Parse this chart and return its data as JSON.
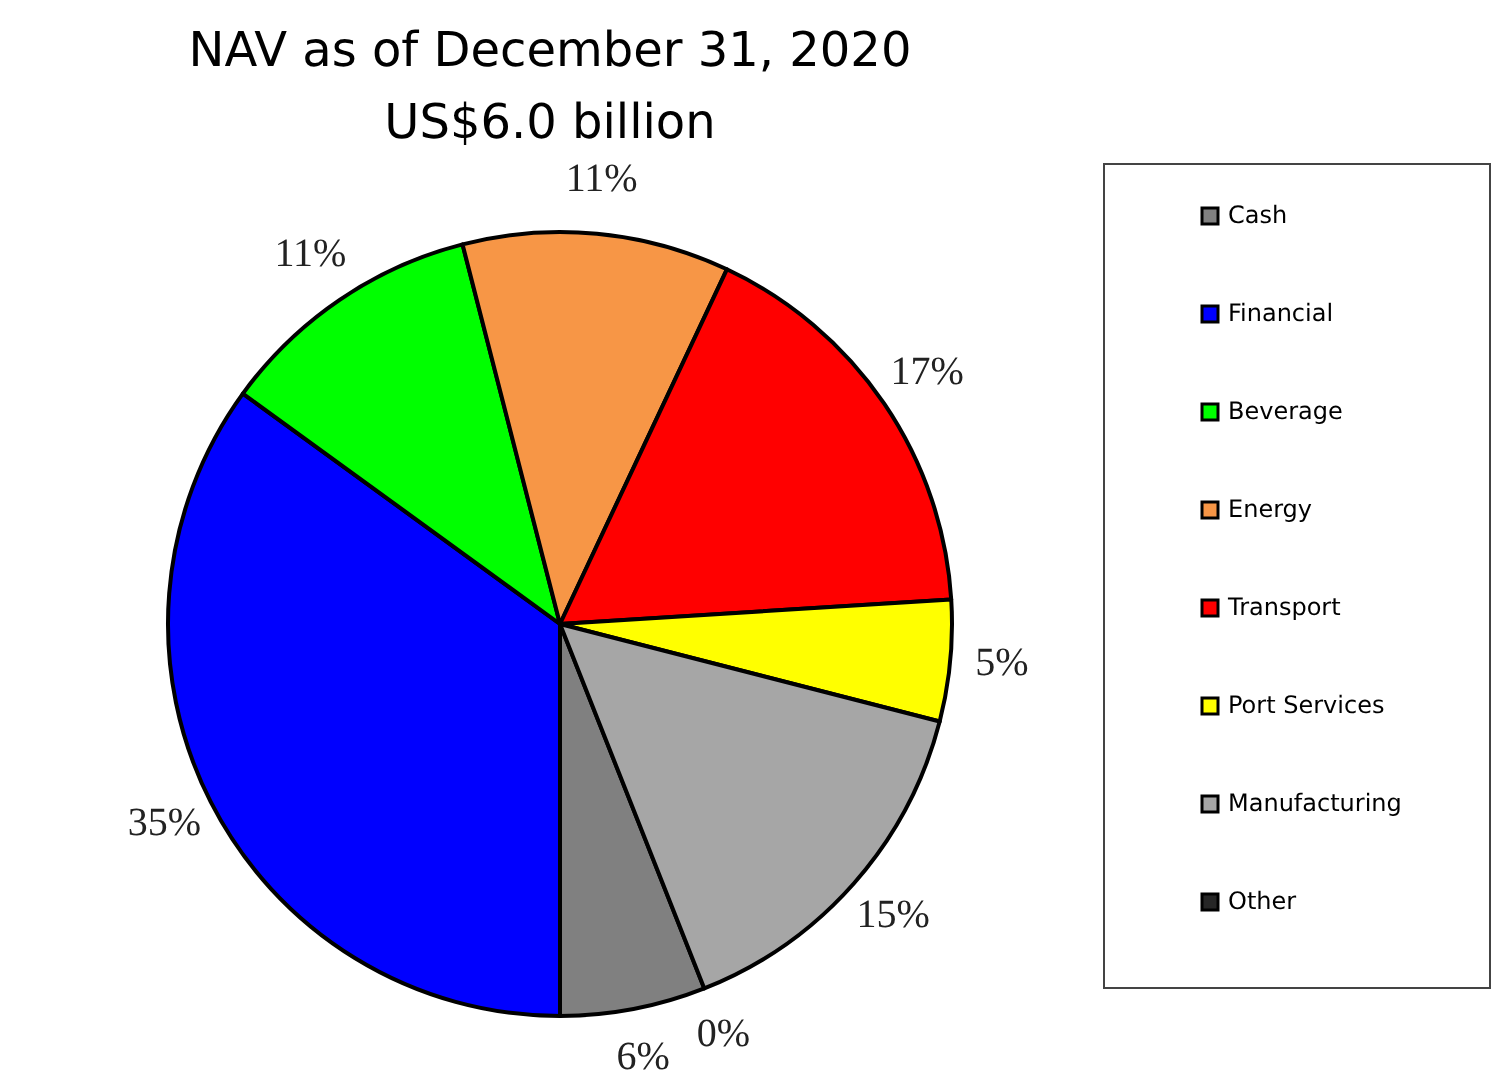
{
  "chart_data": {
    "type": "pie",
    "title": "NAV as of December 31, 2020",
    "subtitle": "US$6.0 billion",
    "categories": [
      "Cash",
      "Financial",
      "Beverage",
      "Energy",
      "Transport",
      "Port Services",
      "Manufacturing",
      "Other"
    ],
    "values": [
      6,
      35,
      11,
      11,
      17,
      5,
      15,
      0
    ],
    "value_labels": [
      "6%",
      "35%",
      "11%",
      "11%",
      "17%",
      "5%",
      "15%",
      "0%"
    ],
    "colors": [
      "#808080",
      "#0000ff",
      "#00ff00",
      "#f79646",
      "#ff0000",
      "#ffff00",
      "#a6a6a6",
      "#262626"
    ],
    "legend": "right"
  }
}
